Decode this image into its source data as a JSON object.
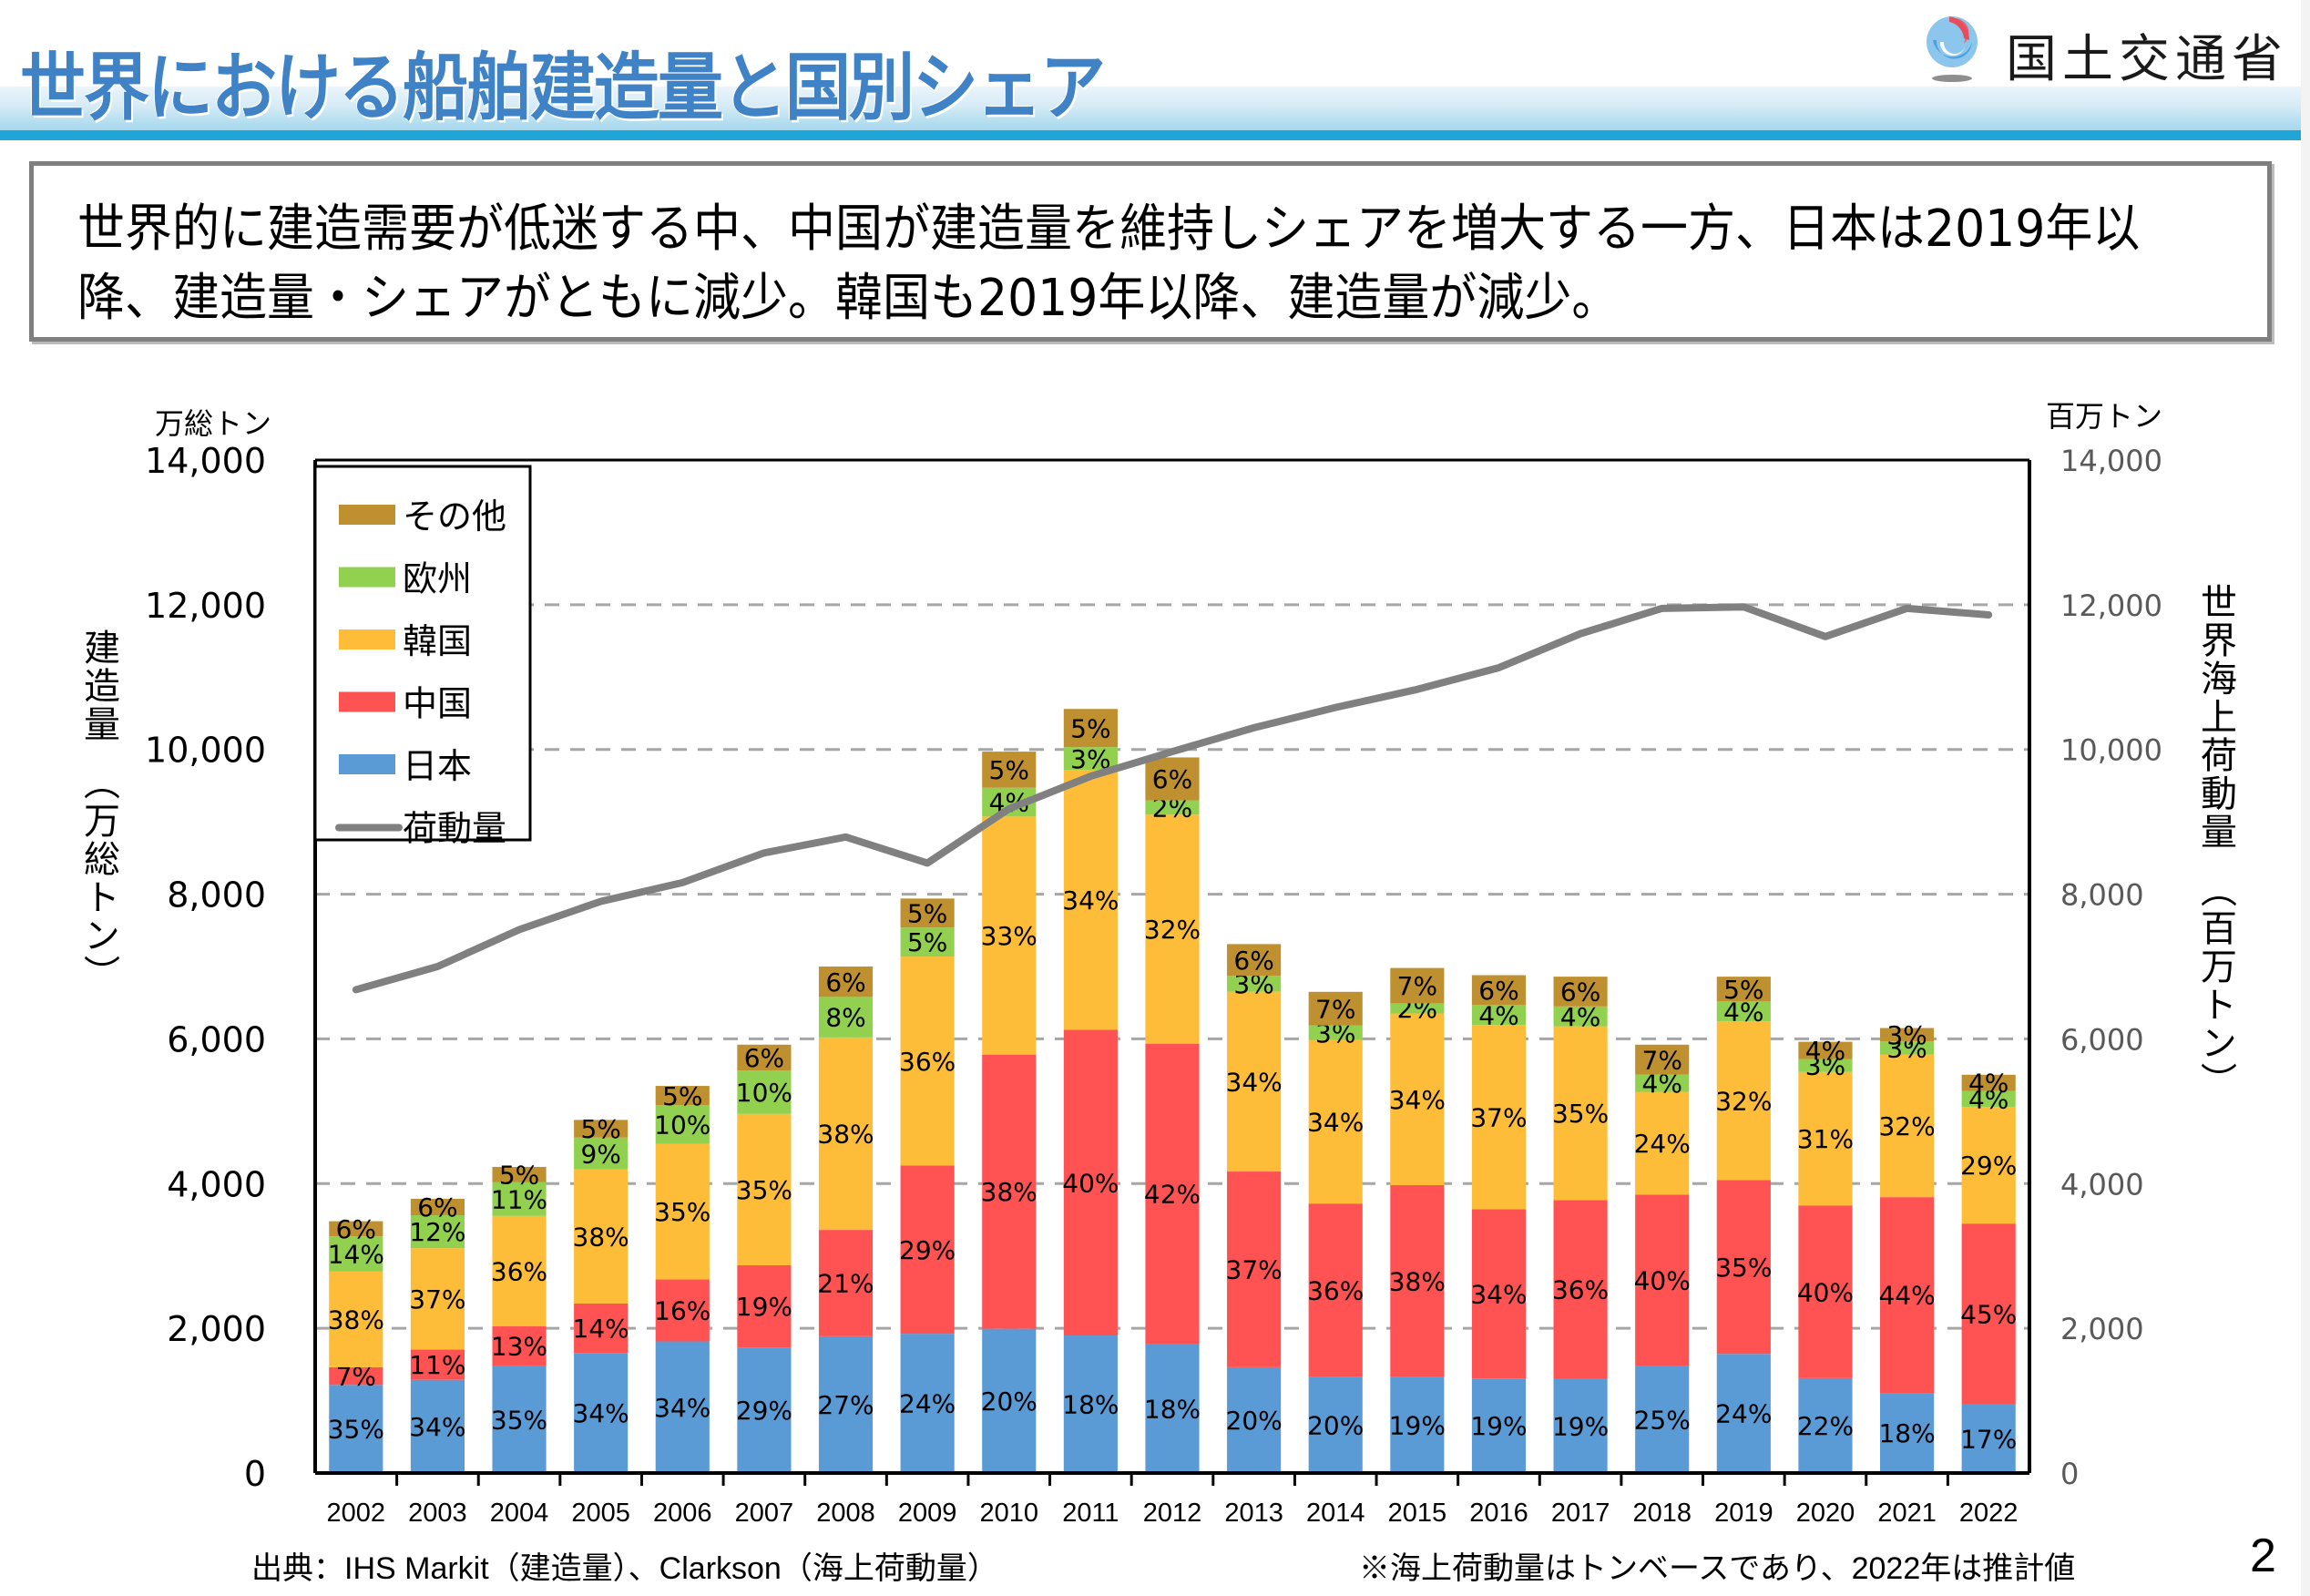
{
  "header": {
    "title": "世界における船舶建造量と国別シェア",
    "logo_text": "国土交通省",
    "logo_icon": "mlit-logo-icon"
  },
  "summary": {
    "line1": "世界的に建造需要が低迷する中、中国が建造量を維持しシェアを増大する一方、日本は2019年以",
    "line2": "降、建造量・シェアがともに減少。韓国も2019年以降、建造量が減少。"
  },
  "axes": {
    "left_unit": "万総トン",
    "right_unit": "百万トン",
    "left_title": "建造量　（万総トン）",
    "right_title": "世界海上荷動量　（百万トン）"
  },
  "footer": {
    "source": "出典：IHS Markit（建造量）、Clarkson（海上荷動量）",
    "note": "※海上荷動量はトンベースであり、2022年は推計値",
    "page_number": "2"
  },
  "colors": {
    "japan": "#5b9bd5",
    "china": "#ff5252",
    "korea": "#fdbd39",
    "europe": "#92d050",
    "other": "#bf902f",
    "line": "#808080",
    "title": "#3f82c6",
    "grid": "#a6a6a6"
  },
  "chart_data": {
    "type": "bar",
    "subtype": "stacked-bar-with-line",
    "title": "世界における船舶建造量と国別シェア",
    "xlabel": "",
    "ylabel": "建造量（万総トン）",
    "y2label": "世界海上荷動量（百万トン）",
    "ylim": [
      0,
      14000
    ],
    "y2lim": [
      0,
      14000
    ],
    "yticks": [
      "0",
      "2,000",
      "4,000",
      "6,000",
      "8,000",
      "10,000",
      "12,000",
      "14,000"
    ],
    "y2ticks": [
      "0",
      "2,000",
      "4,000",
      "6,000",
      "8,000",
      "10,000",
      "12,000",
      "14,000"
    ],
    "grid": "horizontal-dashed",
    "legend_position": "top-left",
    "categories": [
      "2002",
      "2003",
      "2004",
      "2005",
      "2006",
      "2007",
      "2008",
      "2009",
      "2010",
      "2011",
      "2012",
      "2013",
      "2014",
      "2015",
      "2016",
      "2017",
      "2018",
      "2019",
      "2020",
      "2021",
      "2022"
    ],
    "totals": [
      3480,
      3790,
      4230,
      4880,
      5350,
      5980,
      7000,
      8020,
      9970,
      10560,
      9890,
      7310,
      6650,
      6980,
      6880,
      6860,
      5920,
      6860,
      5960,
      6150,
      5560
    ],
    "series": [
      {
        "name": "日本",
        "key": "japan",
        "share_pct": [
          35,
          34,
          35,
          34,
          34,
          29,
          27,
          24,
          20,
          18,
          18,
          20,
          20,
          19,
          19,
          19,
          25,
          24,
          22,
          18,
          17
        ]
      },
      {
        "name": "中国",
        "key": "china",
        "share_pct": [
          7,
          11,
          13,
          14,
          16,
          19,
          21,
          29,
          38,
          40,
          42,
          37,
          36,
          38,
          34,
          36,
          40,
          35,
          40,
          44,
          45
        ]
      },
      {
        "name": "韓国",
        "key": "korea",
        "share_pct": [
          38,
          37,
          36,
          38,
          35,
          35,
          38,
          36,
          33,
          34,
          32,
          34,
          34,
          34,
          37,
          35,
          24,
          32,
          31,
          32,
          29
        ]
      },
      {
        "name": "欧州",
        "key": "europe",
        "share_pct": [
          14,
          12,
          11,
          9,
          10,
          10,
          8,
          5,
          4,
          3,
          2,
          3,
          3,
          2,
          4,
          4,
          4,
          4,
          3,
          3,
          4
        ]
      },
      {
        "name": "その他",
        "key": "other",
        "share_pct": [
          6,
          6,
          5,
          5,
          5,
          6,
          6,
          5,
          5,
          5,
          6,
          6,
          7,
          7,
          6,
          6,
          7,
          5,
          4,
          3,
          4
        ]
      }
    ],
    "line_series": {
      "name": "荷動量",
      "axis": "right",
      "values": [
        6680,
        7000,
        7510,
        7900,
        8160,
        8570,
        8790,
        8430,
        9180,
        9630,
        9970,
        10300,
        10580,
        10830,
        11130,
        11600,
        11950,
        11970,
        11560,
        11950,
        11860
      ]
    },
    "legend": [
      "その他",
      "欧州",
      "韓国",
      "中国",
      "日本",
      "荷動量"
    ]
  }
}
